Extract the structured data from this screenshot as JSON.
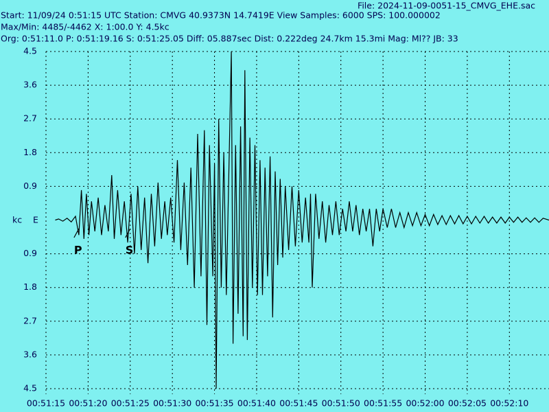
{
  "chart_data": {
    "type": "line",
    "header_file": "File: 2024-11-09-0051-15_CMVG_EHE.sac",
    "header": [
      "Start: 11/09/24  0:51:15 UTC Station: CMVG 40.9373N 14.7419E View Samples: 6000  SPS: 100.000002",
      "Max/Min: 4485/-4462 X: 1:00.0 Y: 4.5kc",
      "Org: 0:51:11.0 P: 0:51:19.16 S: 0:51:25.05 Diff: 05.887sec Dist: 0.222deg 24.7km 15.3mi  Mag: Ml?? JB: 33"
    ],
    "y_label": "kc",
    "channel": "E",
    "color": "#000000",
    "grid": true,
    "xlim": [
      0,
      59.7
    ],
    "ylim": [
      -4.5,
      4.5
    ],
    "xticks": [
      {
        "value": 0,
        "label": "00:51:15"
      },
      {
        "value": 5,
        "label": "00:51:20"
      },
      {
        "value": 10,
        "label": "00:51:25"
      },
      {
        "value": 15,
        "label": "00:51:30"
      },
      {
        "value": 20,
        "label": "00:51:35"
      },
      {
        "value": 25,
        "label": "00:51:40"
      },
      {
        "value": 30,
        "label": "00:51:45"
      },
      {
        "value": 35,
        "label": "00:51:50"
      },
      {
        "value": 40,
        "label": "00:51:55"
      },
      {
        "value": 45,
        "label": "00:52:00"
      },
      {
        "value": 50,
        "label": "00:52:05"
      },
      {
        "value": 55,
        "label": "00:52:10"
      }
    ],
    "yticks": [
      4.5,
      3.6,
      2.7,
      1.8,
      0.9,
      {
        "value": -0.9,
        "label": "0.9"
      },
      {
        "value": -1.8,
        "label": "1.8"
      },
      {
        "value": -2.7,
        "label": "2.7"
      },
      {
        "value": -3.6,
        "label": "3.6"
      },
      {
        "value": -4.5,
        "label": "4.5"
      }
    ],
    "annotations": [
      {
        "text": "P",
        "x": 3.9
      },
      {
        "text": "S",
        "x": 10.0
      }
    ],
    "x": [
      1.1,
      1.5,
      2.0,
      2.5,
      3.0,
      3.5,
      3.9,
      4.2,
      4.5,
      4.8,
      5.1,
      5.4,
      5.8,
      6.2,
      6.6,
      7.0,
      7.4,
      7.8,
      8.1,
      8.5,
      8.9,
      9.3,
      9.7,
      10.1,
      10.5,
      10.9,
      11.3,
      11.7,
      12.1,
      12.5,
      12.9,
      13.3,
      13.7,
      14.1,
      14.4,
      14.8,
      15.2,
      15.6,
      16.0,
      16.4,
      16.8,
      17.2,
      17.6,
      18.0,
      18.4,
      18.8,
      19.1,
      19.4,
      19.8,
      20.0,
      20.2,
      20.5,
      20.8,
      21.1,
      21.4,
      21.7,
      22.0,
      22.2,
      22.5,
      22.8,
      23.1,
      23.4,
      23.6,
      23.9,
      24.2,
      24.5,
      24.8,
      25.1,
      25.4,
      25.7,
      26.0,
      26.3,
      26.6,
      26.9,
      27.2,
      27.5,
      27.8,
      28.1,
      28.4,
      28.8,
      29.2,
      29.6,
      30.0,
      30.4,
      30.8,
      31.2,
      31.4,
      31.6,
      32.0,
      32.4,
      32.8,
      33.2,
      33.6,
      34.0,
      34.4,
      34.8,
      35.2,
      35.6,
      36.0,
      36.4,
      36.8,
      37.2,
      37.6,
      38.0,
      38.4,
      38.8,
      39.2,
      39.6,
      40.0,
      40.5,
      41.0,
      41.5,
      42.0,
      42.5,
      43.0,
      43.5,
      44.0,
      44.5,
      45.0,
      45.5,
      46.0,
      46.5,
      47.0,
      47.5,
      48.0,
      48.5,
      49.0,
      49.5,
      50.0,
      50.5,
      51.0,
      51.5,
      52.0,
      52.5,
      53.0,
      53.5,
      54.0,
      54.5,
      55.0,
      55.5,
      56.0,
      56.5,
      57.0,
      57.5,
      58.0,
      58.5,
      59.0,
      59.7
    ],
    "values": [
      0,
      0.03,
      -0.03,
      0.05,
      -0.05,
      0.1,
      -0.4,
      0.8,
      -0.5,
      0.7,
      -0.4,
      0.5,
      -0.3,
      0.6,
      -0.4,
      0.4,
      -0.3,
      1.2,
      -0.5,
      0.8,
      -0.4,
      0.5,
      -0.6,
      0.7,
      -0.9,
      0.9,
      -0.8,
      0.6,
      -1.15,
      0.7,
      -0.7,
      1.0,
      -0.5,
      0.5,
      -0.4,
      0.6,
      -0.6,
      1.6,
      -0.8,
      1.0,
      -1.2,
      1.4,
      -1.8,
      2.3,
      -1.5,
      2.4,
      -2.8,
      2.0,
      -1.5,
      1.5,
      -4.5,
      2.7,
      -1.8,
      1.8,
      -2.0,
      1.2,
      4.5,
      -3.3,
      2.0,
      -2.5,
      2.5,
      -3.1,
      4.0,
      -3.2,
      2.2,
      -1.8,
      2.0,
      -2.0,
      1.6,
      -2.0,
      1.4,
      -1.5,
      1.7,
      -2.6,
      1.3,
      -1.2,
      1.1,
      -1.0,
      0.9,
      -0.8,
      0.9,
      -0.7,
      0.8,
      -0.6,
      0.6,
      -0.6,
      0.7,
      -1.8,
      0.7,
      -0.5,
      0.5,
      -0.6,
      0.4,
      -0.4,
      0.5,
      -0.4,
      0.3,
      -0.3,
      0.5,
      -0.3,
      0.4,
      -0.4,
      0.3,
      -0.3,
      0.3,
      -0.7,
      0.3,
      -0.3,
      0.3,
      -0.2,
      0.3,
      -0.2,
      0.2,
      -0.2,
      0.2,
      -0.15,
      0.2,
      -0.15,
      0.15,
      -0.15,
      0.15,
      -0.12,
      0.12,
      -0.12,
      0.12,
      -0.1,
      0.12,
      -0.1,
      0.1,
      -0.1,
      0.1,
      -0.08,
      0.1,
      -0.08,
      0.08,
      -0.08,
      0.08,
      -0.08,
      0.08,
      -0.06,
      0.08,
      -0.06,
      0.06,
      -0.06,
      0.06,
      -0.06,
      0.05,
      0
    ]
  }
}
